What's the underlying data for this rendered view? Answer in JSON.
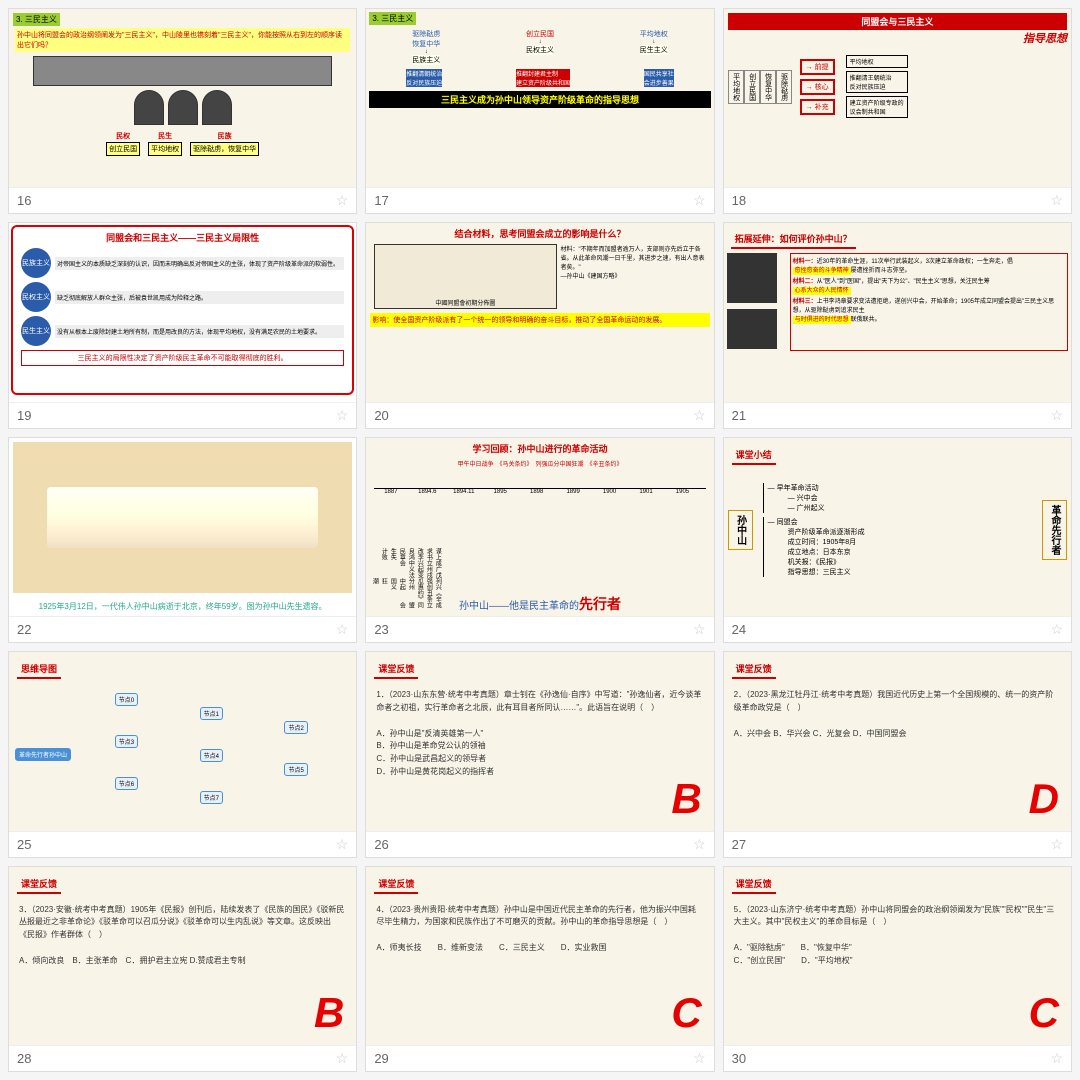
{
  "slides": [
    {
      "num": "16",
      "paper": true,
      "type": "s16",
      "green": "3. 三民主义",
      "q": "孙中山将同盟会的政治纲领阐发为\"三民主义\"，中山陵里也镌刻着\"三民主义\"，你能按照从右到左的顺序读出它们吗？",
      "labels": [
        {
          "t": "民权",
          "b": "创立民国"
        },
        {
          "t": "民生",
          "b": "平均地权"
        },
        {
          "t": "民族",
          "b": "驱除鞑虏，恢复中华"
        }
      ]
    },
    {
      "num": "17",
      "paper": true,
      "type": "s17",
      "green": "3. 三民主义",
      "top": [
        {
          "c": "#2a5caa",
          "t": "驱除鞑虏\n恢复中华",
          "s": "民族主义"
        },
        {
          "c": "#c00",
          "t": "创立民国",
          "s": "民权主义"
        },
        {
          "c": "#2a5caa",
          "t": "平均地权",
          "s": "民生主义"
        }
      ],
      "mid": [
        {
          "c": "#2a5caa",
          "t": "推翻清朝统治\n反对民族压迫"
        },
        {
          "c": "#c00",
          "t": "推翻封建君主制\n建立资产阶级共和国"
        },
        {
          "c": "#2a5caa",
          "t": "国民共享社\n会进步善果"
        }
      ],
      "banner": "三民主义成为孙中山领导资产阶级革命的指导思想"
    },
    {
      "num": "18",
      "paper": true,
      "type": "s18",
      "title": "同盟会与三民主义",
      "guide": "指导思想",
      "left": [
        "平均地权",
        "创立民国",
        "恢复中华",
        "驱除鞑虏"
      ],
      "mid": [
        {
          "l": "前提",
          "c": "#c00"
        },
        {
          "l": "核心",
          "c": "#c00"
        },
        {
          "l": "补充",
          "c": "#c00"
        }
      ],
      "right": [
        "平均地权",
        "推翻清王朝统治\n反对民族压迫",
        "建立资产阶级专政的\n议会制共和国"
      ]
    },
    {
      "num": "19",
      "type": "s19",
      "title": "同盟会和三民主义——三民主义局限性",
      "items": [
        {
          "l": "民族主义",
          "t": "对帝国主义的本质缺乏深刻的认识，因而未明确出反对帝国主义的主张，体现了资产阶级革命派的软弱性。"
        },
        {
          "l": "民权主义",
          "t": "缺乏彻底解放人群众主张，后被袁世凯用成为险释之路。"
        },
        {
          "l": "民生主义",
          "t": "没有从根本上废除封建土地所有制，而是用改良的方法，体现平均地权，没有满足农民的土地要求。"
        }
      ],
      "bottom": "三民主义的局限性决定了资产阶级民主革命不可能取得彻底的胜利。"
    },
    {
      "num": "20",
      "paper": true,
      "type": "s20",
      "title": "结合材料，思考同盟会成立的影响是什么？",
      "caption": "中國同盟會初期分佈圖",
      "quote": "材料：\"不期年而加盟者逾万人，支部则亦先后立于各省。从此革命风潮一日千里，其进步之速，有出人意表者矣。\"\n—孙中山《建国方略》",
      "yellow": "影响：使全国资产阶级派有了一个统一的领导和明确的奋斗目标，推动了全国革命运动的发展。"
    },
    {
      "num": "21",
      "paper": true,
      "type": "s21",
      "title": "拓展延伸：如何评价孙中山？",
      "mats": [
        {
          "h": "材料一：",
          "t": "近30年的革命生涯，11次举行武装起义，3次建立革命政权；一生奔走，倡",
          "y": "愈挫愈奋的斗争精神",
          "t2": "屡遭挫折而斗志弥坚。"
        },
        {
          "h": "材料二：",
          "t": "从\"医人\"到\"医国\"，提出\"天下为公\"、\"民生主义\"思想，关注民生筹",
          "y": "心系大众的人民情怀"
        },
        {
          "h": "材料三：",
          "t": "上书李鸿章要求变法遭拒绝，遂创兴中会，开始革命；1905年成立同盟会提出\"三民主义思想，从驱除鞑虏到追求民主",
          "y": "与时俱进的时代思想",
          "t2": "联俄联共。"
        }
      ]
    },
    {
      "num": "22",
      "type": "s22",
      "caption": "1925年3月12日，一代伟人孙中山病逝于北京，终年59岁。图为孙中山先生遗容。"
    },
    {
      "num": "23",
      "paper": true,
      "type": "s23",
      "title": "学习回顾：孙中山进行的革命活动",
      "years": [
        "1887",
        "1894.6",
        "1894.11",
        "1895",
        "1898",
        "1899",
        "1900",
        "1901",
        "1905"
      ],
      "events": [
        "谋求改良民生计",
        "上书李鸿章失败",
        "成立兴中会",
        "广州起义",
        "戊戌变法",
        "列强瓜分中国狂潮",
        "兴创惠州起义",
        "《辛丑条约》",
        "成立同盟会"
      ],
      "circles": [
        "第一个革命团体",
        "第一次武装起义",
        "第一个革命政党"
      ],
      "bottom": "孙中山——他是民主革命的",
      "red": "先行者"
    },
    {
      "num": "24",
      "paper": true,
      "type": "s24",
      "title": "课堂小结",
      "center": "孙中山",
      "right": "革命先行者",
      "items": [
        "早年革命活动",
        "同盟会"
      ],
      "sub1": [
        "兴中会",
        "广州起义"
      ],
      "sub2": [
        "资产阶级革命派逐渐形成",
        "成立时间：1905年8月",
        "成立地点：日本东京",
        "机关报：《民报》",
        "指导思想：三民主义"
      ]
    },
    {
      "num": "25",
      "paper": true,
      "type": "s25",
      "title": "思维导图"
    },
    {
      "num": "26",
      "paper": true,
      "type": "s26",
      "title": "课堂反馈",
      "q": "1．（2023·山东东营·统考中考真题）章士钊在《孙逸仙·自序》中写道：\"孙逸仙者，近今谈革命者之初祖，实行革命者之北辰，此有耳目者所同认……\"。此语旨在说明（　）",
      "opts": [
        "A．孙中山是\"反清英雄第一人\"",
        "B．孙中山是革命党公认的领袖",
        "C．孙中山是武昌起义的领导者",
        "D．孙中山是黄花岗起义的指挥者"
      ],
      "ans": "B"
    },
    {
      "num": "27",
      "paper": true,
      "type": "s27",
      "title": "课堂反馈",
      "q": "2．（2023·黑龙江牡丹江·统考中考真题）我国近代历史上第一个全国规模的、统一的资产阶级革命政党是（　）",
      "opts": [
        "A．兴中会  B．华兴会  C．光复会  D．中国同盟会"
      ],
      "ans": "D"
    },
    {
      "num": "28",
      "paper": true,
      "type": "s28",
      "title": "课堂反馈",
      "q": "3．（2023·安徽·统考中考真题）1905年《民报》创刊后，陆续发表了《民族的国民》《驳新民丛报最近之非革命论》《驳革命可以召瓜分说》《驳革命可以生内乱说》等文章。这反映出《民报》作者群体（　）",
      "opts": [
        "A．倾向改良　B．主张革命　C．拥护君主立宪 D.赞成君主专制"
      ],
      "ans": "B"
    },
    {
      "num": "29",
      "paper": true,
      "type": "s29",
      "title": "课堂反馈",
      "q": "4．（2023·贵州贵阳·统考中考真题）孙中山是中国近代民主革命的先行者，他为振兴中国耗尽毕生精力，为国家和民族作出了不可磨灭的贡献。孙中山的革命指导思想是（　）",
      "opts": [
        "A．师夷长技　　B．维新变法　　C．三民主义　　D．实业救国"
      ],
      "ans": "C"
    },
    {
      "num": "30",
      "paper": true,
      "type": "s30",
      "title": "课堂反馈",
      "q": "5．（2023·山东济宁·统考中考真题）孙中山将同盟会的政治纲领阐发为\"民族\"\"民权\"\"民生\"三大主义。其中\"民权主义\"的革命目标是（　）",
      "opts": [
        "A．\"驱除鞑虏\"　　B．\"恢复中华\"",
        "C．\"创立民国\"　　D．\"平均地权\""
      ],
      "ans": "C"
    }
  ]
}
